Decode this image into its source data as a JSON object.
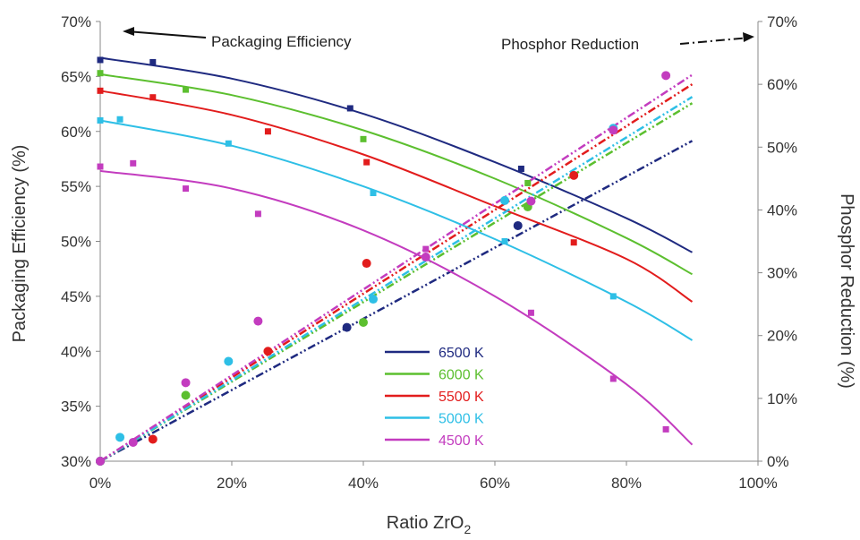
{
  "chart_data": {
    "type": "scatter",
    "xlabel_main": "Ratio ZrO",
    "xlabel_sub": "2",
    "ylabel_left": "Packaging Efficiency (%)",
    "ylabel_right": "Phosphor Reduction (%)",
    "xlim": [
      0,
      100
    ],
    "ylim_left": [
      30,
      70
    ],
    "ylim_right": [
      0,
      70
    ],
    "x_ticks": [
      "0%",
      "20%",
      "40%",
      "60%",
      "80%",
      "100%"
    ],
    "y_left_ticks": [
      "30%",
      "35%",
      "40%",
      "45%",
      "50%",
      "55%",
      "60%",
      "65%",
      "70%"
    ],
    "y_right_ticks": [
      "0%",
      "10%",
      "20%",
      "30%",
      "40%",
      "50%",
      "60%",
      "70%"
    ],
    "annotation_left": "Packaging Efficiency",
    "annotation_right": "Phosphor Reduction",
    "grid": false,
    "legend_position": "lower-center",
    "series": [
      {
        "name": "6500 K",
        "color": "#1f2a80",
        "efficiency_points": {
          "x": [
            0,
            8,
            38,
            64
          ],
          "y": [
            66.5,
            66.3,
            62.1,
            56.6
          ]
        },
        "efficiency_fit": {
          "x": [
            0,
            20,
            40,
            60,
            80,
            90
          ],
          "y": [
            66.7,
            64.8,
            61.6,
            57.2,
            52.1,
            49
          ]
        },
        "reduction_points": {
          "x": [
            0,
            37.5,
            63.5
          ],
          "y": [
            0,
            21.3,
            37.5
          ]
        },
        "reduction_fit": {
          "x": [
            0,
            90
          ],
          "y": [
            0,
            51
          ]
        }
      },
      {
        "name": "6000 K",
        "color": "#5cbf2f",
        "efficiency_points": {
          "x": [
            0,
            13,
            40,
            65
          ],
          "y": [
            65.3,
            63.8,
            59.3,
            55.3
          ]
        },
        "efficiency_fit": {
          "x": [
            0,
            20,
            40,
            60,
            80,
            90
          ],
          "y": [
            65.2,
            63.3,
            60.1,
            55.7,
            50.3,
            47
          ]
        },
        "reduction_points": {
          "x": [
            0,
            13,
            40,
            65
          ],
          "y": [
            0,
            10.5,
            22.1,
            40.5
          ]
        },
        "reduction_fit": {
          "x": [
            0,
            90
          ],
          "y": [
            0,
            57
          ]
        }
      },
      {
        "name": "5500 K",
        "color": "#e21c1c",
        "efficiency_points": {
          "x": [
            0,
            8,
            25.5,
            40.5,
            72
          ],
          "y": [
            63.7,
            63.1,
            60.0,
            57.2,
            49.9
          ]
        },
        "efficiency_fit": {
          "x": [
            0,
            20,
            40,
            60,
            80,
            90
          ],
          "y": [
            63.7,
            61.5,
            57.9,
            53.2,
            48.4,
            44.5
          ]
        },
        "reduction_points": {
          "x": [
            0,
            8,
            25.5,
            40.5,
            72
          ],
          "y": [
            0,
            3.5,
            17.5,
            31.5,
            45.5
          ]
        },
        "reduction_fit": {
          "x": [
            0,
            90
          ],
          "y": [
            0,
            60
          ]
        }
      },
      {
        "name": "5000 K",
        "color": "#2ebfe6",
        "efficiency_points": {
          "x": [
            0,
            3,
            19.5,
            41.5,
            61.5,
            78
          ],
          "y": [
            61.0,
            61.1,
            58.9,
            54.4,
            50.0,
            45.0
          ]
        },
        "efficiency_fit": {
          "x": [
            0,
            20,
            40,
            60,
            80,
            90
          ],
          "y": [
            61,
            58.7,
            55,
            50.2,
            44.5,
            41
          ]
        },
        "reduction_points": {
          "x": [
            0,
            3,
            19.5,
            41.5,
            61.5,
            78
          ],
          "y": [
            0,
            3.8,
            15.9,
            25.8,
            41.5,
            53
          ]
        },
        "reduction_fit": {
          "x": [
            0,
            90
          ],
          "y": [
            0,
            58
          ]
        }
      },
      {
        "name": "4500 K",
        "color": "#c33cbf",
        "efficiency_points": {
          "x": [
            0,
            5,
            13,
            24,
            49.5,
            65.5,
            78,
            86
          ],
          "y": [
            56.8,
            57.1,
            54.8,
            52.5,
            49.3,
            43.5,
            37.5,
            32.9
          ]
        },
        "efficiency_fit": {
          "x": [
            0,
            20,
            40,
            60,
            80,
            90
          ],
          "y": [
            56.4,
            54.8,
            51,
            45,
            37,
            31.5
          ]
        },
        "reduction_points": {
          "x": [
            0,
            5,
            13,
            24,
            49.5,
            65.5,
            78,
            86
          ],
          "y": [
            0,
            3,
            12.5,
            22.3,
            32.5,
            41.4,
            52.7,
            61.4
          ]
        },
        "reduction_fit": {
          "x": [
            0,
            90
          ],
          "y": [
            0,
            61.5
          ]
        }
      }
    ]
  }
}
